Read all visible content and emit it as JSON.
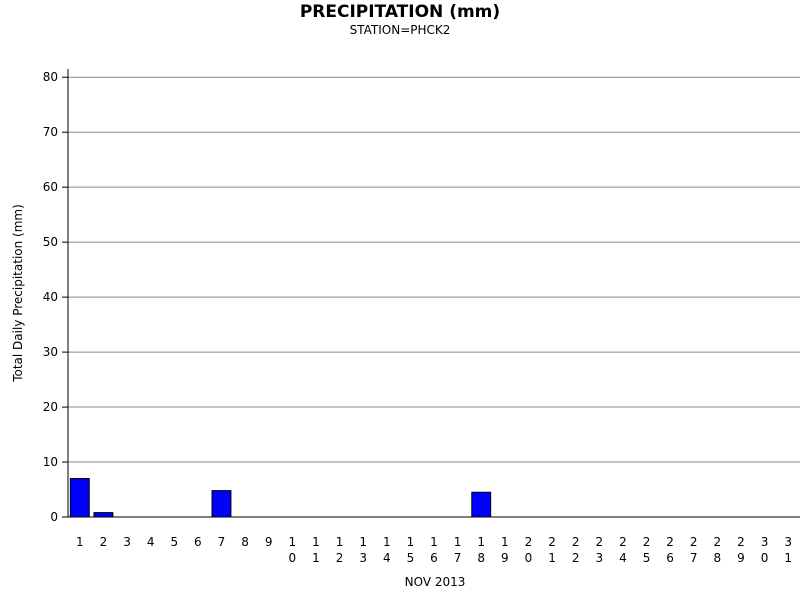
{
  "chart_data": {
    "type": "bar",
    "title": "PRECIPITATION (mm)",
    "subtitle": "STATION=PHCK2",
    "x_label": "NOV 2013",
    "y_label": "Total Daily Precipitation (mm)",
    "categories": [
      "1",
      "2",
      "3",
      "4",
      "5",
      "6",
      "7",
      "8",
      "9",
      "10",
      "11",
      "12",
      "13",
      "14",
      "15",
      "16",
      "17",
      "18",
      "19",
      "20",
      "21",
      "22",
      "23",
      "24",
      "25",
      "26",
      "27",
      "28",
      "29",
      "30",
      "31"
    ],
    "values": [
      7.0,
      0.8,
      0,
      0,
      0,
      0,
      4.8,
      0,
      0,
      0,
      0,
      0,
      0,
      0,
      0,
      0,
      0,
      4.5,
      0,
      0,
      0,
      0,
      0,
      0,
      0,
      0,
      0,
      0,
      0,
      0,
      0
    ],
    "color": "#0000ff",
    "ylim": [
      0,
      81.5
    ],
    "yticks": [
      0,
      10,
      20,
      30,
      40,
      50,
      60,
      70,
      80
    ],
    "grid": true
  }
}
